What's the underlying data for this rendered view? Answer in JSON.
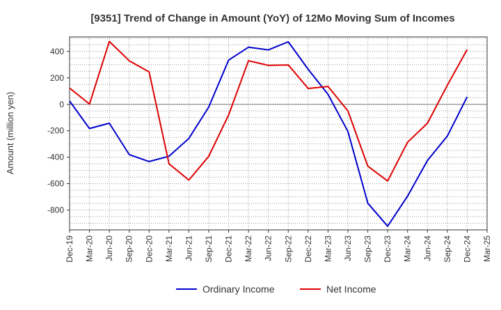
{
  "chart_data": {
    "type": "line",
    "title": "[9351]  Trend of Change in Amount (YoY) of 12Mo Moving Sum of Incomes",
    "xlabel": "",
    "ylabel": "Amount (million yen)",
    "categories": [
      "Dec-19",
      "Mar-20",
      "Jun-20",
      "Sep-20",
      "Dec-20",
      "Mar-21",
      "Jun-21",
      "Sep-21",
      "Dec-21",
      "Mar-22",
      "Jun-22",
      "Sep-22",
      "Dec-22",
      "Mar-23",
      "Jun-23",
      "Sep-23",
      "Dec-23",
      "Mar-24",
      "Jun-24",
      "Sep-24",
      "Dec-24",
      "Mar-25"
    ],
    "ylim": [
      -950,
      510
    ],
    "yticks": [
      400,
      200,
      0,
      -200,
      -400,
      -600,
      -800
    ],
    "ytick_labels": [
      "400",
      "200",
      "0",
      "-200",
      "-400",
      "-600",
      "-800"
    ],
    "grid": true,
    "legend_position": "bottom",
    "series": [
      {
        "name": "Ordinary Income",
        "color": "#0000cc",
        "values": [
          25,
          -183,
          -143,
          -380,
          -433,
          -393,
          -258,
          -20,
          335,
          432,
          412,
          473,
          265,
          75,
          -205,
          -748,
          -922,
          -695,
          -425,
          -240,
          57,
          null
        ]
      },
      {
        "name": "Net Income",
        "color": "#dd0000",
        "values": [
          123,
          2,
          476,
          330,
          245,
          -450,
          -573,
          -393,
          -80,
          330,
          295,
          298,
          120,
          135,
          -50,
          -468,
          -580,
          -287,
          -143,
          145,
          415,
          null
        ]
      }
    ]
  }
}
